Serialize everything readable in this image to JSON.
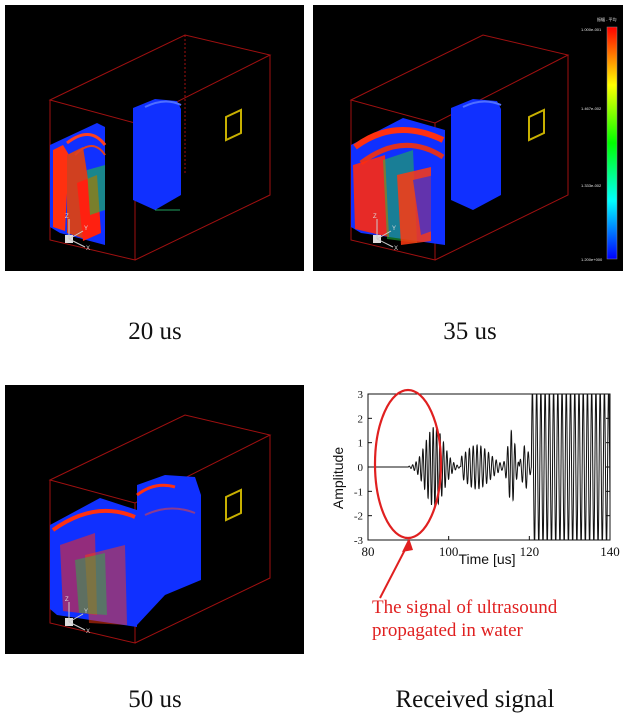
{
  "captions": {
    "p1": "20 us",
    "p2": "35 us",
    "p3": "50 us",
    "p4": "Received signal"
  },
  "colorbar": {
    "title": "振幅 - 平均",
    "ticks": [
      "1.000e-001",
      "1.467e-002",
      "1.333e-002",
      "1.200e+000"
    ],
    "colors": [
      "#ff0000",
      "#ffff00",
      "#00ff00",
      "#00ffff",
      "#0000ff"
    ]
  },
  "axis_triad": {
    "z": "Z",
    "y": "Y",
    "x": "X"
  },
  "annotation": {
    "line1": "The signal of ultrasound",
    "line2": "propagated in water"
  },
  "chart_data": {
    "type": "line",
    "xlabel": "Time [us]",
    "ylabel": "Amplitude",
    "xlim": [
      80,
      140
    ],
    "ylim": [
      -3,
      3
    ],
    "xticks": [
      80,
      100,
      120,
      140
    ],
    "yticks": [
      3,
      2,
      1,
      0,
      -1,
      -2,
      -3
    ],
    "series": [
      {
        "color": "#111111",
        "segments": [
          {
            "t0": 80,
            "t1": 90,
            "kind": "flat"
          },
          {
            "t0": 90,
            "t1": 103,
            "kind": "burst",
            "amp": 1.65,
            "center": 96.5,
            "width": 3.2,
            "period": 0.85
          },
          {
            "t0": 103,
            "t1": 115,
            "kind": "burst",
            "amp": 0.9,
            "center": 107,
            "width": 4.5,
            "period": 0.95
          },
          {
            "t0": 113.5,
            "t1": 117.5,
            "kind": "burst",
            "amp": 1.5,
            "center": 115.6,
            "width": 1.2,
            "period": 0.9
          },
          {
            "t0": 117.5,
            "t1": 120.5,
            "kind": "burst",
            "amp": 0.9,
            "center": 119,
            "width": 1.2,
            "period": 1.0
          },
          {
            "t0": 120.5,
            "t1": 140,
            "kind": "saturated",
            "amp": 3.2,
            "period": 1.05
          }
        ]
      }
    ]
  },
  "colors": {
    "annotation": "#e02020",
    "box": "#a01010",
    "sensor": "#c8b000",
    "field_blue": "#1030ff",
    "field_red": "#ff2010"
  }
}
